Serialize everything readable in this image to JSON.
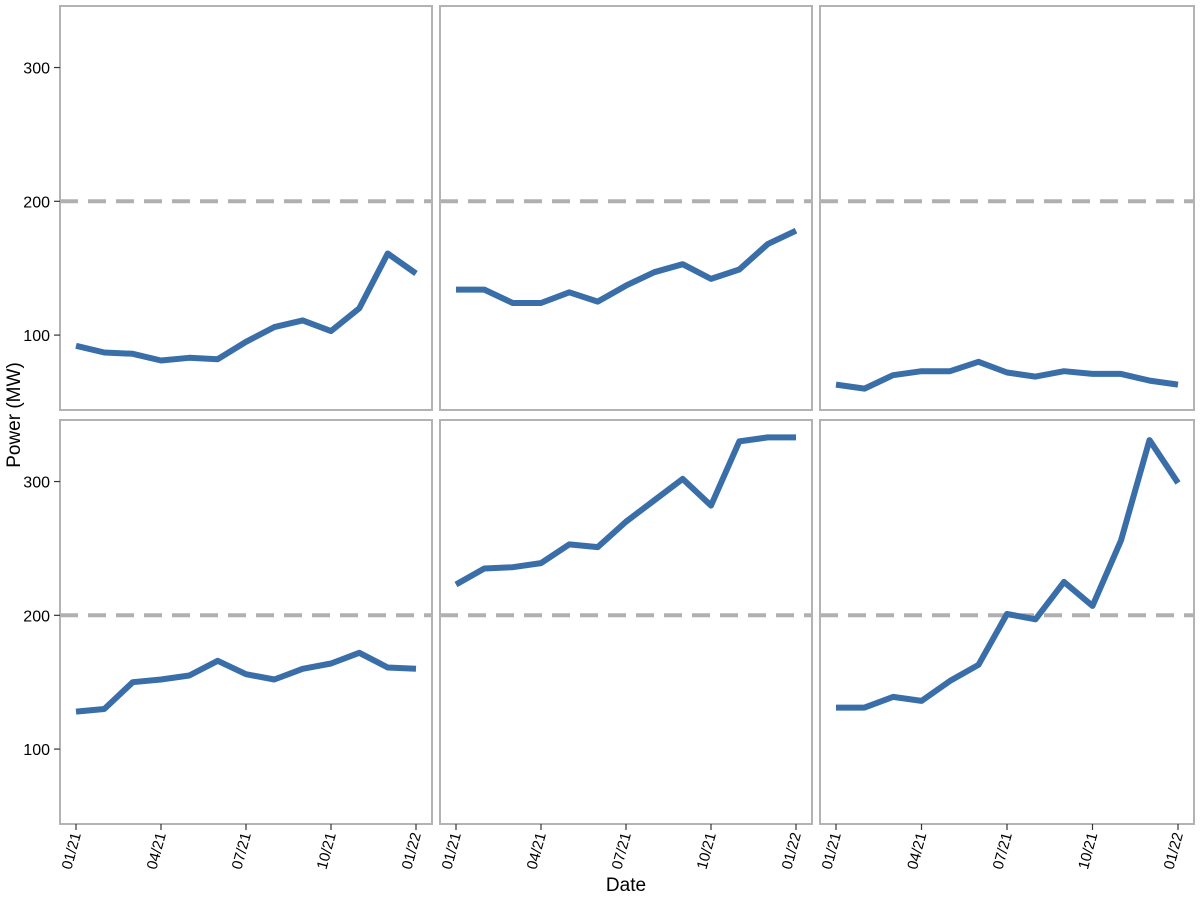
{
  "chart_data": {
    "type": "line",
    "xlabel": "Date",
    "ylabel": "Power (MW)",
    "x_tick_labels": [
      "01/21",
      "04/21",
      "07/21",
      "10/21",
      "01/22"
    ],
    "y_ticks": [
      100,
      200,
      300
    ],
    "ylim": [
      44,
      346
    ],
    "x_dates": [
      "2021-01",
      "2021-02",
      "2021-03",
      "2021-04",
      "2021-05",
      "2021-06",
      "2021-07",
      "2021-08",
      "2021-09",
      "2021-10",
      "2021-11",
      "2021-12",
      "2022-01"
    ],
    "reference_line": {
      "value": 200,
      "style": "dashed"
    },
    "grid": false,
    "layout": {
      "rows": 2,
      "cols": 3,
      "shared_y": true,
      "shared_x": true
    },
    "colors": {
      "series": "#3a6ea8",
      "reference": "#b0b0b0",
      "panel_border": "#b3b3b3"
    },
    "panels": [
      {
        "values": [
          92,
          87,
          86,
          81,
          83,
          82,
          95,
          106,
          111,
          103,
          120,
          161,
          146
        ]
      },
      {
        "values": [
          134,
          134,
          124,
          124,
          132,
          125,
          137,
          147,
          153,
          142,
          149,
          168,
          178
        ]
      },
      {
        "values": [
          63,
          60,
          70,
          73,
          73,
          80,
          72,
          69,
          73,
          71,
          71,
          66,
          63
        ]
      },
      {
        "values": [
          128,
          130,
          150,
          152,
          155,
          166,
          156,
          152,
          160,
          164,
          172,
          161,
          160
        ]
      },
      {
        "values": [
          223,
          235,
          236,
          239,
          253,
          251,
          270,
          286,
          302,
          282,
          330,
          333,
          333
        ]
      },
      {
        "values": [
          131,
          131,
          139,
          136,
          151,
          163,
          201,
          197,
          225,
          207,
          256,
          331,
          299
        ]
      }
    ]
  }
}
